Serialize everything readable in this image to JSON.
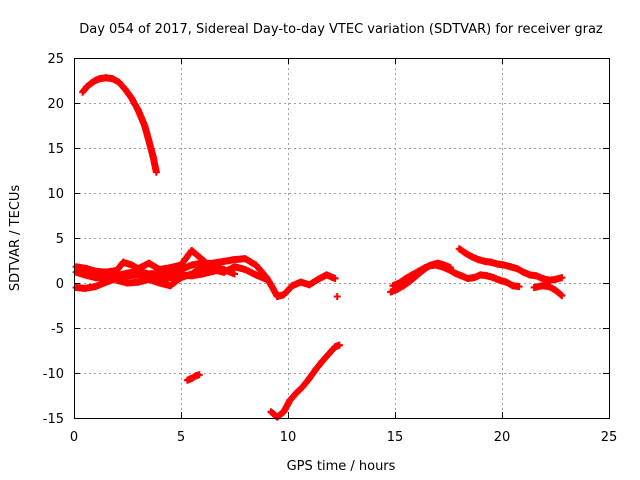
{
  "chart_data": {
    "type": "scatter",
    "title": "Day 054 of 2017, Sidereal Day-to-day VTEC variation (SDTVAR) for receiver graz",
    "xlabel": "GPS time / hours",
    "ylabel": "SDTVAR / TECUs",
    "xlim": [
      0,
      25
    ],
    "ylim": [
      -15,
      25
    ],
    "x_ticks": [
      0,
      5,
      10,
      15,
      20,
      25
    ],
    "y_ticks": [
      -15,
      -10,
      -5,
      0,
      5,
      10,
      15,
      20,
      25
    ],
    "grid": true,
    "marker": "plus",
    "series_color": "#ff0000",
    "series": [
      {
        "name": "arc-high",
        "points": [
          [
            0.4,
            21.2
          ],
          [
            0.6,
            21.8
          ],
          [
            0.8,
            22.2
          ],
          [
            1.0,
            22.5
          ],
          [
            1.2,
            22.7
          ],
          [
            1.5,
            22.8
          ],
          [
            1.8,
            22.7
          ],
          [
            2.1,
            22.3
          ],
          [
            2.4,
            21.5
          ],
          [
            2.7,
            20.5
          ],
          [
            3.0,
            19.2
          ],
          [
            3.3,
            17.5
          ],
          [
            3.5,
            15.8
          ],
          [
            3.7,
            14.0
          ],
          [
            3.85,
            12.3
          ]
        ]
      },
      {
        "name": "arc-main-a",
        "points": [
          [
            0.1,
            -0.5
          ],
          [
            0.5,
            -0.6
          ],
          [
            1.0,
            -0.4
          ],
          [
            1.5,
            0.1
          ],
          [
            2.0,
            0.5
          ],
          [
            2.5,
            0.8
          ],
          [
            3.0,
            0.9
          ],
          [
            3.5,
            1.0
          ],
          [
            4.0,
            1.1
          ],
          [
            4.5,
            1.3
          ],
          [
            5.0,
            1.5
          ],
          [
            5.5,
            2.0
          ],
          [
            6.0,
            2.2
          ],
          [
            6.5,
            2.2
          ],
          [
            7.0,
            2.4
          ],
          [
            7.5,
            2.6
          ],
          [
            8.0,
            2.7
          ],
          [
            8.5,
            2.0
          ],
          [
            9.0,
            0.6
          ],
          [
            9.3,
            -0.6
          ],
          [
            9.5,
            -1.5
          ],
          [
            9.8,
            -1.3
          ],
          [
            10.2,
            -0.3
          ],
          [
            10.6,
            0.1
          ],
          [
            11.0,
            -0.2
          ],
          [
            11.4,
            0.4
          ],
          [
            11.8,
            0.9
          ],
          [
            12.2,
            0.5
          ]
        ]
      },
      {
        "name": "arc-main-b",
        "points": [
          [
            0.1,
            1.8
          ],
          [
            0.6,
            1.6
          ],
          [
            1.0,
            1.3
          ],
          [
            1.5,
            1.2
          ],
          [
            2.0,
            1.4
          ],
          [
            2.3,
            2.3
          ],
          [
            2.7,
            2.0
          ],
          [
            3.0,
            1.6
          ],
          [
            3.5,
            2.2
          ],
          [
            4.0,
            1.5
          ],
          [
            4.5,
            1.7
          ],
          [
            5.0,
            2.0
          ],
          [
            5.5,
            3.6
          ],
          [
            6.0,
            2.6
          ],
          [
            6.5,
            1.5
          ],
          [
            7.0,
            1.2
          ],
          [
            7.5,
            1.8
          ],
          [
            8.0,
            1.5
          ],
          [
            8.5,
            0.9
          ],
          [
            9.0,
            0.4
          ]
        ]
      },
      {
        "name": "arc-main-c",
        "points": [
          [
            0.1,
            1.2
          ],
          [
            0.5,
            0.9
          ],
          [
            1.0,
            0.6
          ],
          [
            1.5,
            0.5
          ],
          [
            2.0,
            0.8
          ],
          [
            2.5,
            1.1
          ],
          [
            3.0,
            1.3
          ],
          [
            3.5,
            1.0
          ],
          [
            4.0,
            0.4
          ],
          [
            4.5,
            0.6
          ],
          [
            5.0,
            0.9
          ],
          [
            5.5,
            0.8
          ],
          [
            6.0,
            1.0
          ],
          [
            6.5,
            1.3
          ],
          [
            7.0,
            1.5
          ],
          [
            7.5,
            1.0
          ]
        ]
      },
      {
        "name": "arc-main-d",
        "points": [
          [
            2.0,
            0.3
          ],
          [
            2.5,
            0.0
          ],
          [
            3.0,
            0.1
          ],
          [
            3.5,
            0.4
          ],
          [
            4.0,
            0.0
          ],
          [
            4.5,
            -0.3
          ],
          [
            5.0,
            0.6
          ],
          [
            5.5,
            1.0
          ],
          [
            6.0,
            1.8
          ],
          [
            6.5,
            1.7
          ],
          [
            7.0,
            1.5
          ]
        ]
      },
      {
        "name": "arc-low-seg",
        "points": [
          [
            5.3,
            -10.8
          ],
          [
            5.5,
            -10.6
          ],
          [
            5.7,
            -10.3
          ],
          [
            5.85,
            -10.2
          ]
        ]
      },
      {
        "name": "arc-low",
        "points": [
          [
            9.2,
            -14.3
          ],
          [
            9.5,
            -14.9
          ],
          [
            9.8,
            -14.3
          ],
          [
            10.1,
            -13.0
          ],
          [
            10.4,
            -12.2
          ],
          [
            10.7,
            -11.5
          ],
          [
            11.0,
            -10.6
          ],
          [
            11.3,
            -9.6
          ],
          [
            11.6,
            -8.7
          ],
          [
            11.9,
            -7.9
          ],
          [
            12.2,
            -7.1
          ],
          [
            12.4,
            -6.9
          ]
        ]
      },
      {
        "name": "arc-mid-dot",
        "points": [
          [
            12.3,
            -1.5
          ]
        ]
      },
      {
        "name": "arc-right-a",
        "points": [
          [
            14.8,
            -1.0
          ],
          [
            15.1,
            -0.7
          ],
          [
            15.4,
            -0.3
          ],
          [
            15.7,
            0.2
          ],
          [
            16.0,
            0.8
          ],
          [
            16.3,
            1.4
          ],
          [
            16.6,
            1.9
          ],
          [
            16.9,
            2.0
          ],
          [
            17.2,
            1.8
          ],
          [
            17.5,
            1.5
          ],
          [
            17.8,
            1.1
          ],
          [
            18.1,
            0.8
          ],
          [
            18.4,
            0.5
          ],
          [
            18.7,
            0.6
          ],
          [
            19.0,
            0.9
          ],
          [
            19.3,
            0.8
          ],
          [
            19.6,
            0.6
          ],
          [
            19.9,
            0.3
          ],
          [
            20.2,
            0.1
          ],
          [
            20.5,
            -0.3
          ],
          [
            20.8,
            -0.4
          ]
        ]
      },
      {
        "name": "arc-right-b",
        "points": [
          [
            14.9,
            -0.3
          ],
          [
            15.2,
            0.0
          ],
          [
            15.5,
            0.5
          ],
          [
            15.8,
            0.9
          ],
          [
            16.1,
            1.3
          ],
          [
            16.4,
            1.7
          ],
          [
            16.7,
            2.0
          ],
          [
            17.0,
            2.2
          ],
          [
            17.3,
            2.0
          ],
          [
            17.6,
            1.7
          ]
        ]
      },
      {
        "name": "arc-right-c",
        "points": [
          [
            18.0,
            3.8
          ],
          [
            18.3,
            3.3
          ],
          [
            18.6,
            2.9
          ],
          [
            18.9,
            2.6
          ],
          [
            19.2,
            2.4
          ],
          [
            19.5,
            2.3
          ],
          [
            19.8,
            2.1
          ],
          [
            20.1,
            2.0
          ],
          [
            20.4,
            1.8
          ],
          [
            20.7,
            1.6
          ],
          [
            21.0,
            1.2
          ],
          [
            21.3,
            0.9
          ],
          [
            21.6,
            0.8
          ],
          [
            21.9,
            0.5
          ],
          [
            22.2,
            0.3
          ],
          [
            22.5,
            0.4
          ],
          [
            22.8,
            0.6
          ]
        ]
      },
      {
        "name": "arc-right-d",
        "points": [
          [
            21.5,
            -0.5
          ],
          [
            21.9,
            -0.3
          ],
          [
            22.2,
            -0.4
          ],
          [
            22.5,
            -0.8
          ],
          [
            22.8,
            -1.4
          ]
        ]
      }
    ]
  }
}
